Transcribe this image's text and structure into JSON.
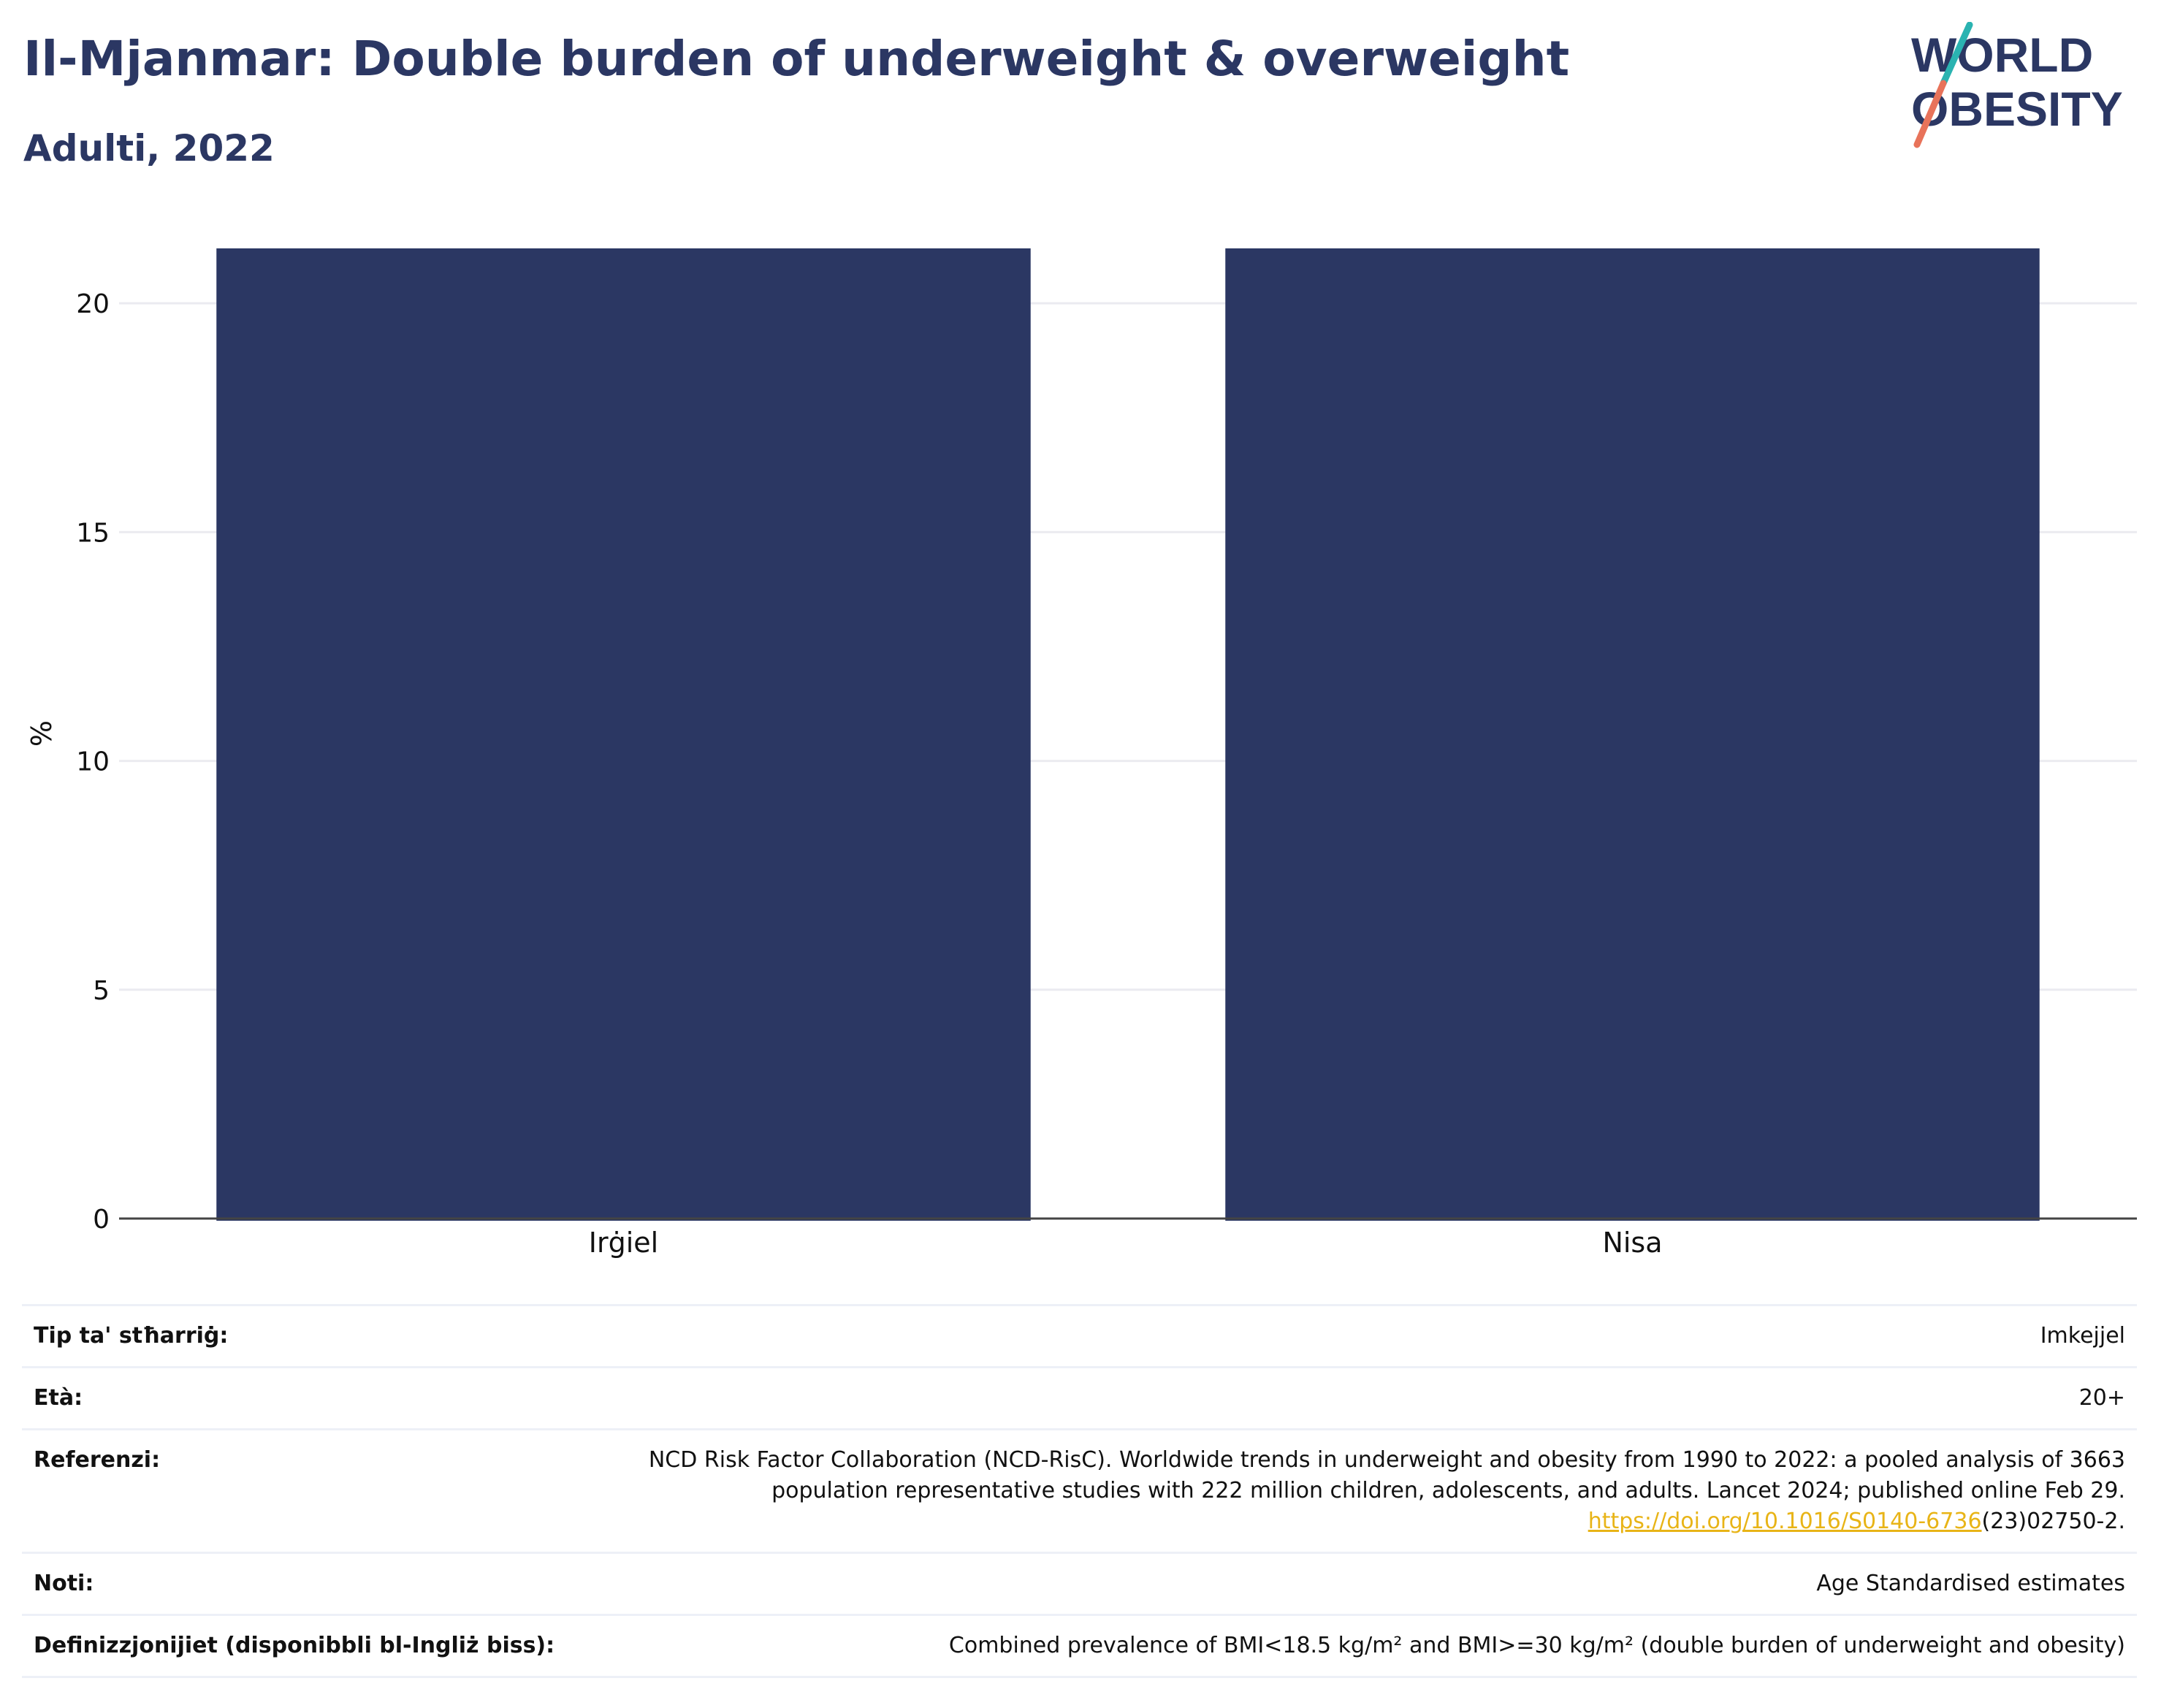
{
  "header": {
    "title": "Il-Mjanmar: Double burden of underweight & overweight",
    "subtitle": "Adulti, 2022"
  },
  "logo": {
    "line1": "WORLD",
    "line2": "OBESITY",
    "colors": {
      "text": "#2b3763",
      "slash_top": "#2ab3b1",
      "slash_bottom": "#e8735a"
    }
  },
  "colors": {
    "bar": "#2b3763",
    "grid": "#ebebf0",
    "axis": "#444444"
  },
  "chart_data": {
    "type": "bar",
    "categories": [
      "Irġiel",
      "Nisa"
    ],
    "values": [
      21.2,
      21.2
    ],
    "ylabel": "%",
    "ylim": [
      0,
      21.2
    ],
    "yticks": [
      0,
      5,
      10,
      15,
      20
    ],
    "grid": true
  },
  "meta": {
    "rows": [
      {
        "label": "Tip ta' stħarriġ:",
        "value": "Imkejjel"
      },
      {
        "label": "Età:",
        "value": "20+"
      },
      {
        "label": "Referenzi:",
        "value": "NCD Risk Factor Collaboration (NCD-RisC). Worldwide trends in underweight and obesity from 1990 to 2022: a pooled analysis of 3663 population representative studies with 222 million children, adolescents, and adults. Lancet 2024; published online Feb 29.",
        "link": "https://doi.org/10.1016/S0140-6736",
        "link_suffix": "(23)02750-2."
      },
      {
        "label": "Noti:",
        "value": "Age Standardised estimates"
      },
      {
        "label": "Definizzjonijiet (disponibbli bl-Ingliż biss):",
        "value": "Combined prevalence of BMI<18.5 kg/m² and BMI>=30 kg/m² (double burden of underweight and obesity)"
      }
    ]
  }
}
